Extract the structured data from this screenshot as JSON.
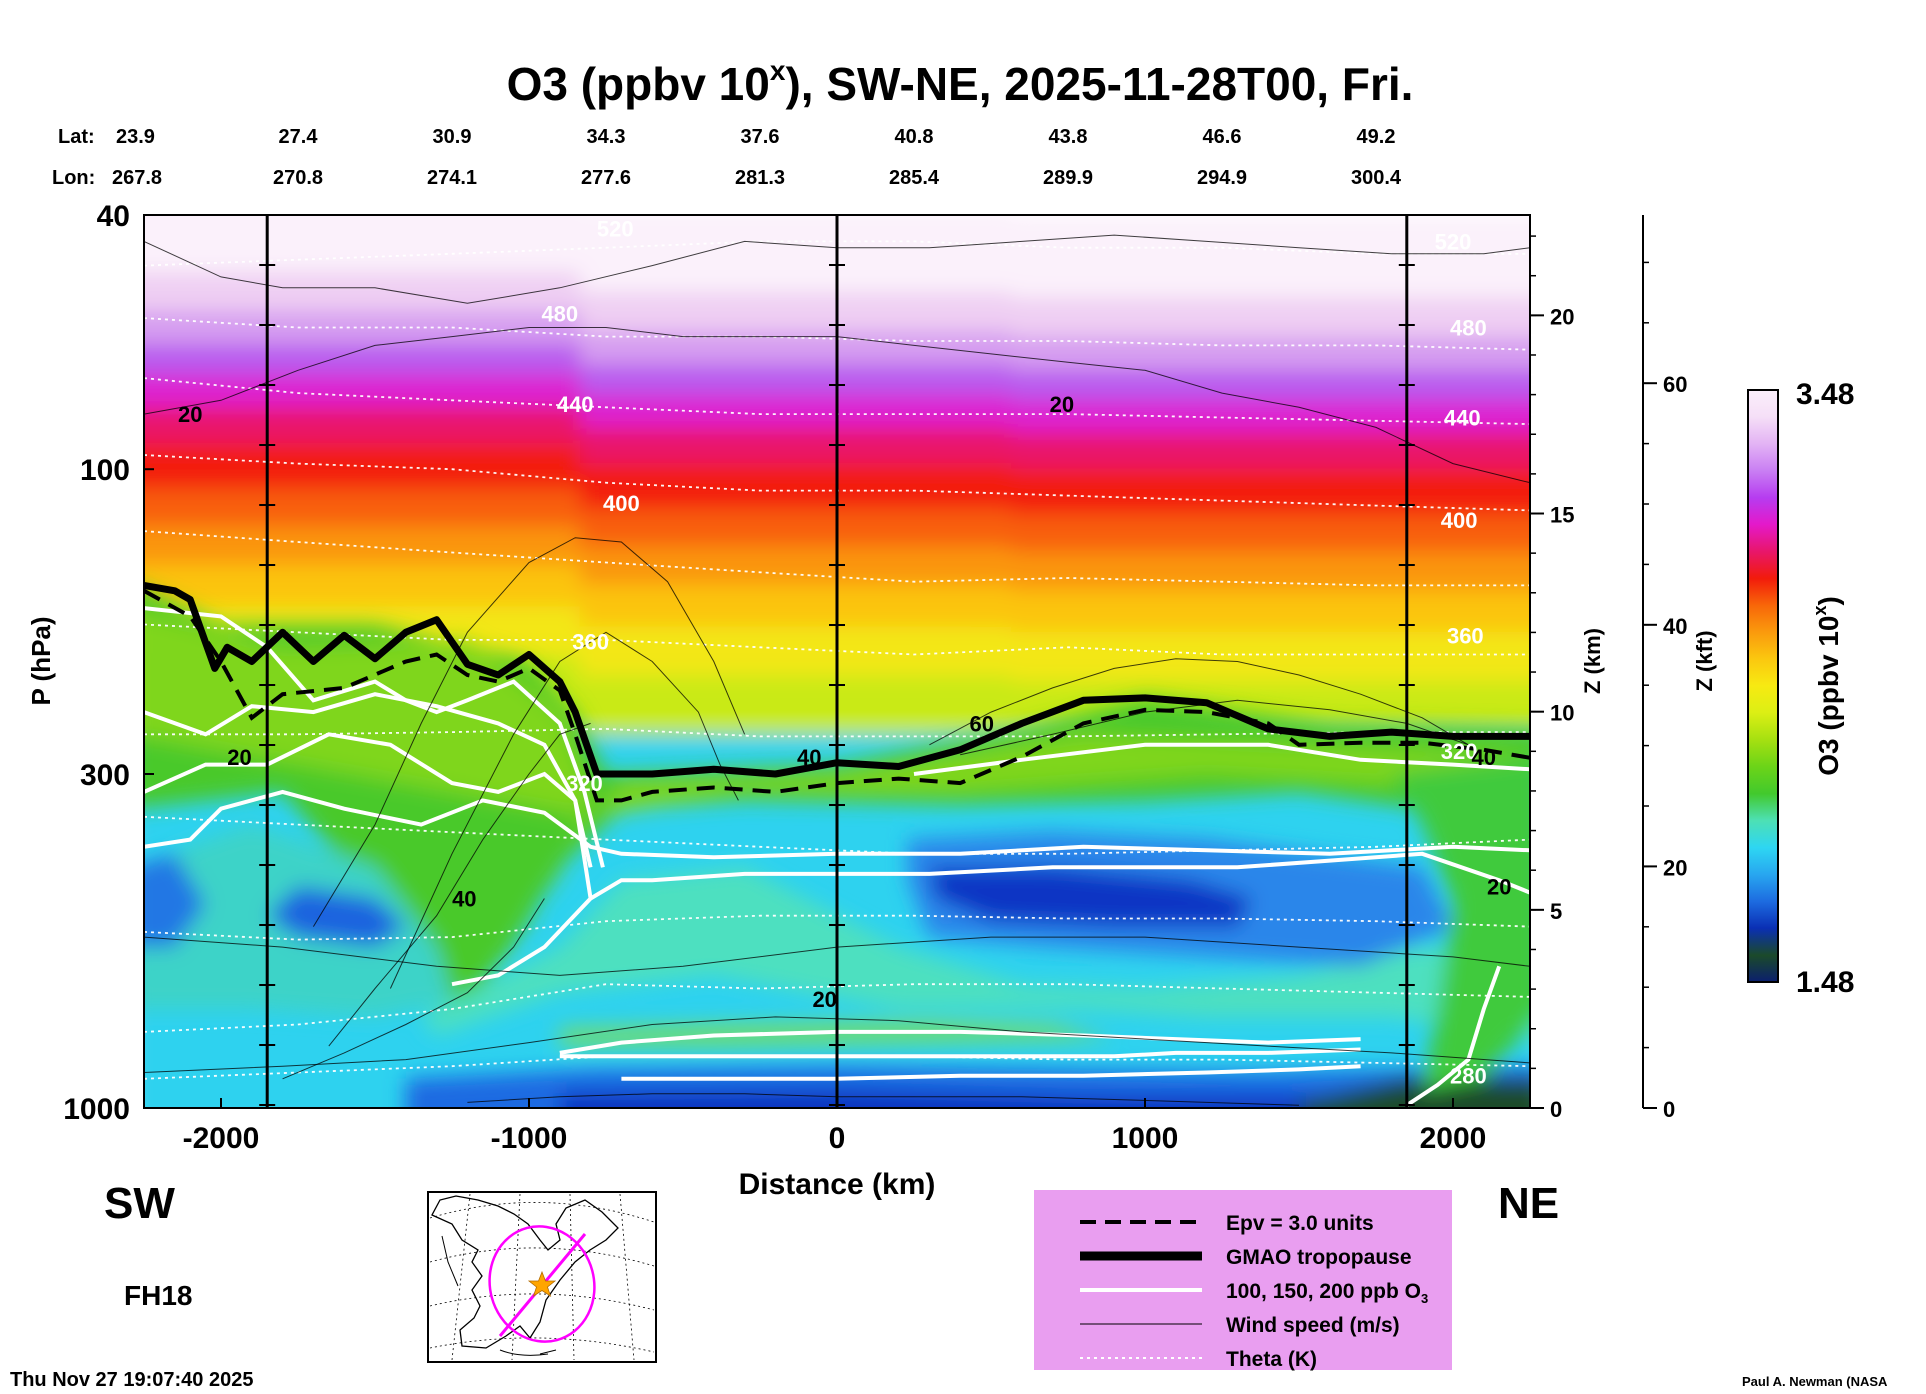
{
  "chart_data": {
    "type": "heatmap",
    "title_prefix": "O3 (ppbv 10",
    "title_sup": "x",
    "title_suffix": "), SW-NE, 2025-11-28T00, Fri.",
    "xlabel": "Distance (km)",
    "ylabel": "P (hPa)",
    "xlim": [
      -2250,
      2250
    ],
    "x_ticks": [
      "-2000",
      "-1000",
      "0",
      "1000",
      "2000"
    ],
    "x_tick_values": [
      -2000,
      -1000,
      0,
      1000,
      2000
    ],
    "y_ticks": [
      "40",
      "100",
      "300",
      "1000"
    ],
    "y_tick_values": [
      40,
      100,
      300,
      1000
    ],
    "ylim": [
      1000,
      40
    ],
    "z_km_label": "Z (km)",
    "z_km_ticks": [
      "0",
      "5",
      "10",
      "15",
      "20"
    ],
    "z_km_values": [
      0,
      5,
      10,
      15,
      20
    ],
    "z_kft_label": "Z (kft)",
    "z_kft_ticks": [
      "0",
      "20",
      "40",
      "60"
    ],
    "z_kft_values": [
      0,
      20,
      40,
      60
    ],
    "lat_label": "Lat:",
    "lon_label": "Lon:",
    "lat_values": [
      "23.9",
      "27.4",
      "30.9",
      "34.3",
      "37.6",
      "40.8",
      "43.8",
      "46.6",
      "49.2"
    ],
    "lon_values": [
      "267.8",
      "270.8",
      "274.1",
      "277.6",
      "281.3",
      "285.4",
      "289.9",
      "294.9",
      "300.4"
    ],
    "coord_positions_km": [
      -2250,
      -1750,
      -1250,
      -750,
      -250,
      250,
      750,
      1250,
      1750
    ],
    "vertical_marker_km": [
      -1850,
      0,
      1850
    ],
    "colorbar_label_prefix": "O3 (ppbv 10",
    "colorbar_label_sup": "x",
    "colorbar_label_suffix": ")",
    "colorbar_max": "3.48",
    "colorbar_min": "1.48",
    "colorbar_range": [
      1.48,
      3.48
    ],
    "colorbar_colors": [
      "#0b1f6e",
      "#1b4a2a",
      "#0a2fb4",
      "#1d6be0",
      "#28a7f0",
      "#2ed6f2",
      "#4de0b4",
      "#42c92d",
      "#6cd418",
      "#a5e011",
      "#dcef14",
      "#f7ea12",
      "#fbc80f",
      "#fa9a0d",
      "#f86709",
      "#f21b0b",
      "#e8166a",
      "#e419ca",
      "#b63cf0",
      "#c97ff3",
      "#e3b3f4",
      "#f5dff7",
      "#fbeffb"
    ],
    "theta_labels": [
      {
        "text": "320",
        "x_km": -820,
        "p": 310
      },
      {
        "text": "360",
        "x_km": -800,
        "p": 186
      },
      {
        "text": "400",
        "x_km": -700,
        "p": 113
      },
      {
        "text": "440",
        "x_km": -850,
        "p": 79
      },
      {
        "text": "480",
        "x_km": -900,
        "p": 57
      },
      {
        "text": "520",
        "x_km": -720,
        "p": 42
      },
      {
        "text": "520",
        "x_km": 2000,
        "p": 44
      },
      {
        "text": "480",
        "x_km": 2050,
        "p": 60
      },
      {
        "text": "440",
        "x_km": 2030,
        "p": 83
      },
      {
        "text": "400",
        "x_km": 2020,
        "p": 120
      },
      {
        "text": "360",
        "x_km": 2040,
        "p": 182
      },
      {
        "text": "320",
        "x_km": 2020,
        "p": 276
      },
      {
        "text": "280",
        "x_km": 2050,
        "p": 890
      }
    ],
    "wind_labels": [
      {
        "text": "20",
        "x_km": -2100,
        "p": 82
      },
      {
        "text": "20",
        "x_km": 730,
        "p": 79
      },
      {
        "text": "20",
        "x_km": -1940,
        "p": 282
      },
      {
        "text": "40",
        "x_km": -1210,
        "p": 470
      },
      {
        "text": "40",
        "x_km": -90,
        "p": 282
      },
      {
        "text": "60",
        "x_km": 470,
        "p": 250
      },
      {
        "text": "40",
        "x_km": 2100,
        "p": 282
      },
      {
        "text": "20",
        "x_km": -40,
        "p": 675
      },
      {
        "text": "20",
        "x_km": 2150,
        "p": 450
      }
    ],
    "tropopause": {
      "x_km": [
        -2250,
        -2150,
        -2100,
        -2020,
        -1980,
        -1900,
        -1800,
        -1700,
        -1600,
        -1500,
        -1400,
        -1300,
        -1200,
        -1100,
        -1000,
        -900,
        -850,
        -780,
        -700,
        -600,
        -400,
        -200,
        0,
        200,
        400,
        600,
        800,
        1000,
        1200,
        1400,
        1600,
        1800,
        2000,
        2250
      ],
      "p": [
        152,
        155,
        160,
        205,
        190,
        200,
        180,
        200,
        182,
        198,
        180,
        172,
        202,
        210,
        195,
        215,
        240,
        300,
        300,
        300,
        295,
        300,
        288,
        292,
        275,
        250,
        230,
        228,
        232,
        255,
        262,
        258,
        262,
        262
      ]
    },
    "epv_3pvu": {
      "x_km": [
        -2250,
        -2100,
        -2000,
        -1900,
        -1800,
        -1600,
        -1400,
        -1300,
        -1200,
        -1100,
        -1000,
        -900,
        -850,
        -780,
        -700,
        -600,
        -400,
        -200,
        0,
        200,
        400,
        600,
        800,
        1000,
        1200,
        1400,
        1500,
        1700,
        1900,
        2100,
        2250
      ],
      "p": [
        155,
        170,
        200,
        245,
        225,
        220,
        200,
        195,
        210,
        215,
        205,
        222,
        260,
        330,
        330,
        320,
        315,
        320,
        310,
        305,
        310,
        282,
        250,
        238,
        240,
        250,
        270,
        268,
        268,
        275,
        283
      ]
    },
    "legend": {
      "items": [
        {
          "label": "Epv = 3.0 units",
          "style": "dashed"
        },
        {
          "label": "GMAO tropopause",
          "style": "thick"
        },
        {
          "label": "100, 150, 200 ppb O",
          "sub": "3",
          "style": "white"
        },
        {
          "label": "Wind speed (m/s)",
          "style": "thin"
        },
        {
          "label": "Theta (K)",
          "style": "dotted"
        }
      ]
    }
  },
  "labels": {
    "sw": "SW",
    "ne": "NE",
    "fh": "FH18",
    "timestamp": "Thu Nov 27 19:07:40 2025",
    "credit": "Paul A. Newman (NASA"
  },
  "colors": {
    "legend_bg": "#e99ef0",
    "tropopause": "#000000",
    "map_ellipse": "#ff00ff",
    "map_star": "#ffa500"
  }
}
